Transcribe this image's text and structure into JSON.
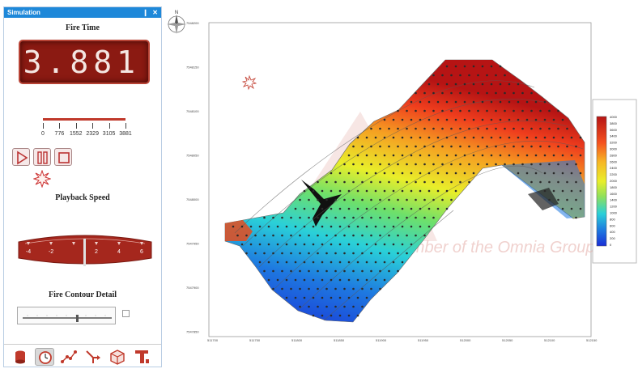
{
  "panel": {
    "title": "Simulation",
    "pin_glyph": "❙",
    "close_glyph": "✕",
    "fire_time_heading": "Fire Time",
    "fire_time_value": "3.881",
    "timeline_ticks": [
      "0",
      "776",
      "1552",
      "2329",
      "3105",
      "3881"
    ],
    "playback_buttons": [
      "play-icon",
      "pause-icon",
      "stop-icon"
    ],
    "playback_heading": "Playback Speed",
    "speed_labels": [
      "-4",
      "-2",
      "0",
      "2",
      "4",
      "6"
    ],
    "contour_heading": "Fire Contour Detail",
    "contour_checked": false,
    "toolbar_icons": [
      "drum-icon",
      "clock-icon",
      "pattern-icon",
      "drill-icon",
      "box-icon",
      "text-icon"
    ],
    "toolbar_active": 1
  },
  "map": {
    "y_ticks": [
      "7548200",
      "7548150",
      "7548100",
      "7548050",
      "7548000",
      "7547950",
      "7547900",
      "7547850"
    ],
    "x_ticks": [
      "511700",
      "511750",
      "511800",
      "511850",
      "511900",
      "511950",
      "512000",
      "512050",
      "512100",
      "512150"
    ],
    "watermark": "member of the Omnia Group",
    "legend_values": [
      "4000",
      "3800",
      "3600",
      "3400",
      "3200",
      "3000",
      "2800",
      "2600",
      "2400",
      "2200",
      "2000",
      "1800",
      "1600",
      "1400",
      "1200",
      "1000",
      "800",
      "600",
      "400",
      "200",
      "0"
    ],
    "compass_label": "N"
  },
  "colors": {
    "panel_header": "#1e88d9",
    "lcd_bg": "#8b1a12",
    "accent_red": "#c0392b"
  }
}
